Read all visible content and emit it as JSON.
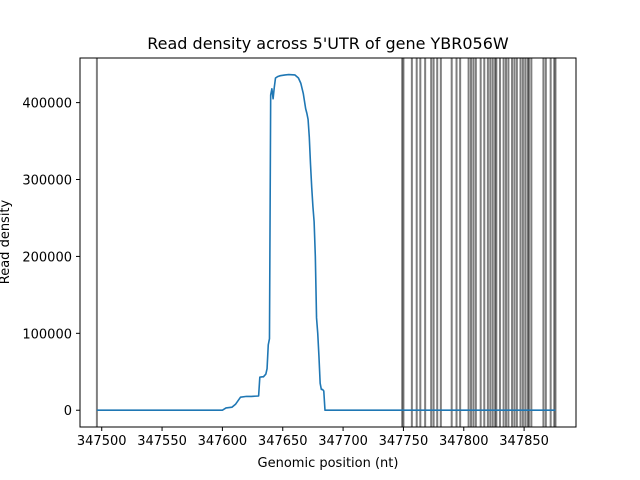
{
  "chart_data": {
    "type": "line",
    "title": "Read density across 5'UTR of gene YBR056W",
    "xlabel": "Genomic position (nt)",
    "ylabel": "Read density",
    "xlim": [
      347482,
      347893
    ],
    "ylim": [
      -21800,
      458000
    ],
    "xticks": [
      347500,
      347550,
      347600,
      347650,
      347700,
      347750,
      347800,
      347850
    ],
    "yticks": [
      0,
      100000,
      200000,
      300000,
      400000
    ],
    "grid": false,
    "colors": {
      "line": "#1f77b4",
      "vlines": "#000000"
    },
    "series": [
      {
        "x": [
          347496,
          347560,
          347600,
          347601,
          347603,
          347608,
          347611,
          347615,
          347620,
          347624,
          347630,
          347631,
          347633,
          347634,
          347636,
          347637,
          347638,
          347639,
          347640,
          347641,
          347642,
          347643,
          347644,
          347646,
          347648,
          347650,
          347652,
          347655,
          347660,
          347663,
          347665,
          347667,
          347669,
          347670,
          347671,
          347672,
          347673,
          347674,
          347675,
          347676,
          347677,
          347678,
          347679,
          347680,
          347681,
          347682,
          347683,
          347684,
          347685,
          347687,
          347749,
          347800,
          347876
        ],
        "y": [
          0,
          0,
          0,
          1000,
          3000,
          4000,
          8000,
          17000,
          18000,
          18000,
          18500,
          43000,
          43500,
          43500,
          47000,
          54000,
          85000,
          93000,
          410000,
          418000,
          405000,
          420000,
          432000,
          434000,
          435000,
          435500,
          436000,
          436500,
          436000,
          432000,
          425000,
          412000,
          392000,
          386000,
          378000,
          355000,
          320000,
          290000,
          265000,
          245000,
          200000,
          120000,
          100000,
          70000,
          35000,
          27000,
          27000,
          25000,
          0,
          0,
          0,
          0,
          0
        ]
      }
    ],
    "vlines": [
      347496,
      347749,
      347750,
      347757,
      347761,
      347764,
      347768,
      347773,
      347775,
      347778,
      347781,
      347790,
      347794,
      347797,
      347804,
      347806,
      347808,
      347810,
      347814,
      347817,
      347820,
      347822,
      347824,
      347826,
      347827,
      347830,
      347833,
      347835,
      347837,
      347840,
      347842,
      347844,
      347847,
      347849,
      347851,
      347853,
      347854,
      347856,
      347866,
      347868,
      347872,
      347875,
      347876
    ]
  }
}
